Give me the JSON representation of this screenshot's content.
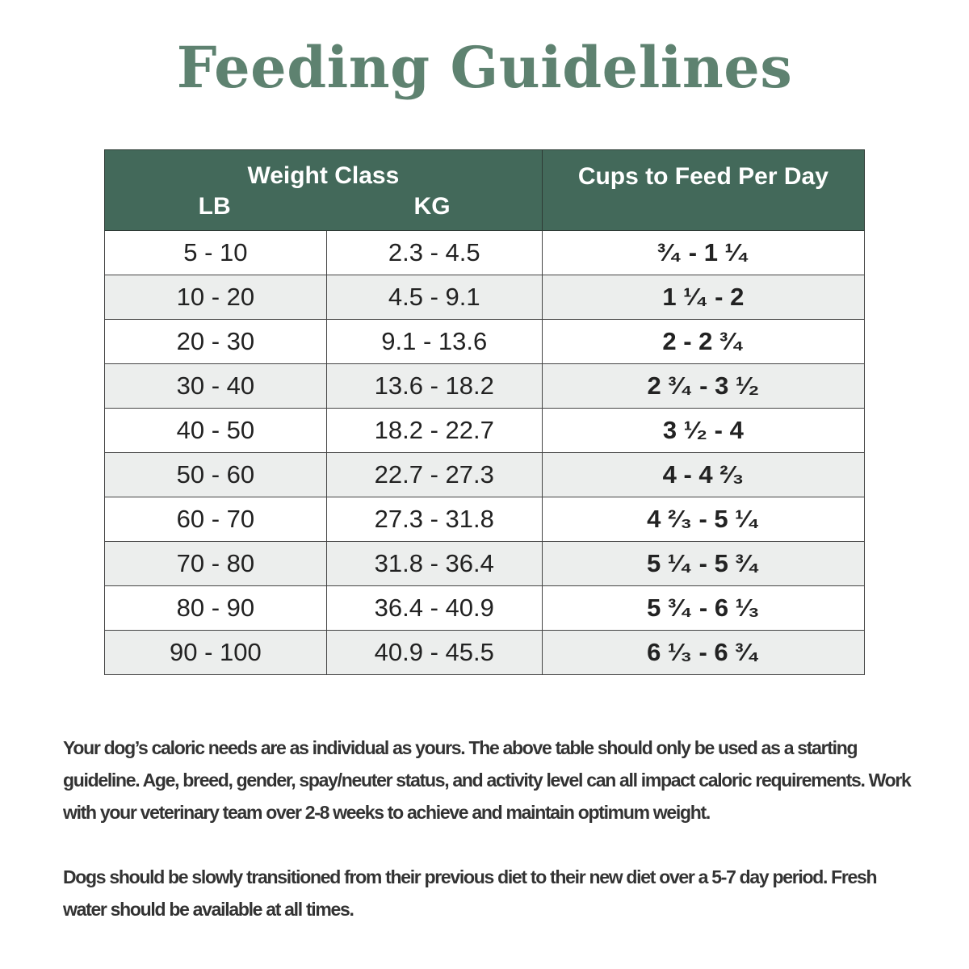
{
  "title": "Feeding Guidelines",
  "table": {
    "header": {
      "weight_class": "Weight Class",
      "lb": "LB",
      "kg": "KG",
      "cups": "Cups to Feed Per Day"
    },
    "rows": [
      {
        "lb": "5 - 10",
        "kg": "2.3 - 4.5",
        "cups": "³⁄₄ - 1 ¹⁄₄"
      },
      {
        "lb": "10 - 20",
        "kg": "4.5 - 9.1",
        "cups": "1 ¹⁄₄ - 2"
      },
      {
        "lb": "20 - 30",
        "kg": "9.1 - 13.6",
        "cups": "2 - 2 ³⁄₄"
      },
      {
        "lb": "30 - 40",
        "kg": "13.6 - 18.2",
        "cups": "2 ³⁄₄ - 3 ¹⁄₂"
      },
      {
        "lb": "40 - 50",
        "kg": "18.2 - 22.7",
        "cups": "3 ¹⁄₂ - 4"
      },
      {
        "lb": "50 - 60",
        "kg": "22.7 - 27.3",
        "cups": "4 - 4 ²⁄₃"
      },
      {
        "lb": "60 - 70",
        "kg": "27.3 - 31.8",
        "cups": "4 ²⁄₃ - 5 ¹⁄₄"
      },
      {
        "lb": "70 - 80",
        "kg": "31.8 - 36.4",
        "cups": "5 ¹⁄₄ - 5 ³⁄₄"
      },
      {
        "lb": "80 - 90",
        "kg": "36.4 - 40.9",
        "cups": "5 ³⁄₄ - 6 ¹⁄₃"
      },
      {
        "lb": "90 - 100",
        "kg": "40.9 - 45.5",
        "cups": "6 ¹⁄₃ - 6 ³⁄₄"
      }
    ]
  },
  "notes": [
    "Your dog’s caloric needs are as individual as yours. The above table should only be used as a starting guideline. Age, breed, gender, spay/neuter status, and activity level can all impact caloric requirements. Work with your veterinary team over 2-8 weeks to achieve and maintain optimum weight.",
    "Dogs should be slowly transitioned from their previous diet to their new diet over a 5-7 day period. Fresh water should be available at all times."
  ],
  "colors": {
    "title": "#5e8270",
    "header_bg": "#43695a",
    "alt_row_bg": "#eceeed"
  }
}
